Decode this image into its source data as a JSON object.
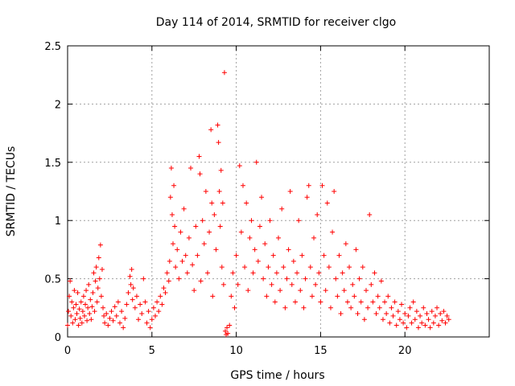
{
  "chart_data": {
    "type": "scatter",
    "title": "Day 114 of 2014, SRMTID for receiver clgo",
    "xlabel": "GPS time / hours",
    "ylabel": "SRMTID / TECUs",
    "xlim": [
      0,
      25
    ],
    "ylim": [
      0,
      2.5
    ],
    "xticks": [
      0,
      5,
      10,
      15,
      20
    ],
    "yticks": [
      0,
      0.5,
      1,
      1.5,
      2,
      2.5
    ],
    "x_tick_labels": [
      "0",
      "5",
      "10",
      "15",
      "20"
    ],
    "y_tick_labels": [
      "0",
      "0.5",
      "1",
      "1.5",
      "2",
      "2.5"
    ],
    "grid": true,
    "marker": "+",
    "color": "#ff0000",
    "series": [
      {
        "name": "SRMTID",
        "points": [
          [
            0.0,
            0.1
          ],
          [
            0.05,
            0.22
          ],
          [
            0.1,
            0.35
          ],
          [
            0.15,
            0.48
          ],
          [
            0.2,
            0.18
          ],
          [
            0.25,
            0.3
          ],
          [
            0.3,
            0.12
          ],
          [
            0.35,
            0.25
          ],
          [
            0.4,
            0.4
          ],
          [
            0.45,
            0.15
          ],
          [
            0.5,
            0.28
          ],
          [
            0.55,
            0.2
          ],
          [
            0.6,
            0.38
          ],
          [
            0.65,
            0.1
          ],
          [
            0.7,
            0.24
          ],
          [
            0.75,
            0.16
          ],
          [
            0.8,
            0.3
          ],
          [
            0.85,
            0.12
          ],
          [
            0.9,
            0.22
          ],
          [
            0.95,
            0.35
          ],
          [
            1.0,
            0.18
          ],
          [
            1.05,
            0.28
          ],
          [
            1.1,
            0.4
          ],
          [
            1.15,
            0.14
          ],
          [
            1.2,
            0.25
          ],
          [
            1.25,
            0.45
          ],
          [
            1.3,
            0.2
          ],
          [
            1.35,
            0.32
          ],
          [
            1.4,
            0.15
          ],
          [
            1.45,
            0.26
          ],
          [
            1.5,
            0.38
          ],
          [
            1.55,
            0.55
          ],
          [
            1.6,
            0.22
          ],
          [
            1.65,
            0.48
          ],
          [
            1.7,
            0.6
          ],
          [
            1.75,
            0.3
          ],
          [
            1.8,
            0.42
          ],
          [
            1.85,
            0.68
          ],
          [
            1.9,
            0.5
          ],
          [
            1.95,
            0.79
          ],
          [
            2.0,
            0.35
          ],
          [
            2.05,
            0.58
          ],
          [
            2.1,
            0.25
          ],
          [
            2.15,
            0.18
          ],
          [
            2.2,
            0.12
          ],
          [
            2.3,
            0.2
          ],
          [
            2.4,
            0.1
          ],
          [
            2.5,
            0.16
          ],
          [
            2.6,
            0.22
          ],
          [
            2.7,
            0.14
          ],
          [
            2.8,
            0.26
          ],
          [
            2.9,
            0.18
          ],
          [
            3.0,
            0.3
          ],
          [
            3.1,
            0.12
          ],
          [
            3.2,
            0.22
          ],
          [
            3.3,
            0.08
          ],
          [
            3.4,
            0.16
          ],
          [
            3.5,
            0.28
          ],
          [
            3.6,
            0.38
          ],
          [
            3.7,
            0.52
          ],
          [
            3.75,
            0.45
          ],
          [
            3.8,
            0.58
          ],
          [
            3.85,
            0.32
          ],
          [
            3.9,
            0.42
          ],
          [
            4.0,
            0.25
          ],
          [
            4.1,
            0.35
          ],
          [
            4.2,
            0.15
          ],
          [
            4.3,
            0.28
          ],
          [
            4.4,
            0.2
          ],
          [
            4.5,
            0.5
          ],
          [
            4.6,
            0.3
          ],
          [
            4.7,
            0.12
          ],
          [
            4.8,
            0.22
          ],
          [
            4.9,
            0.08
          ],
          [
            5.0,
            0.15
          ],
          [
            5.1,
            0.25
          ],
          [
            5.2,
            0.18
          ],
          [
            5.3,
            0.3
          ],
          [
            5.4,
            0.22
          ],
          [
            5.5,
            0.35
          ],
          [
            5.6,
            0.28
          ],
          [
            5.7,
            0.42
          ],
          [
            5.8,
            0.38
          ],
          [
            5.9,
            0.55
          ],
          [
            6.0,
            0.48
          ],
          [
            6.05,
            0.65
          ],
          [
            6.1,
            1.2
          ],
          [
            6.15,
            1.45
          ],
          [
            6.2,
            1.05
          ],
          [
            6.25,
            0.8
          ],
          [
            6.3,
            1.3
          ],
          [
            6.35,
            0.95
          ],
          [
            6.4,
            0.6
          ],
          [
            6.5,
            0.75
          ],
          [
            6.6,
            0.5
          ],
          [
            6.7,
            0.9
          ],
          [
            6.8,
            0.65
          ],
          [
            6.9,
            1.1
          ],
          [
            7.0,
            0.7
          ],
          [
            7.1,
            0.55
          ],
          [
            7.2,
            0.85
          ],
          [
            7.3,
            1.45
          ],
          [
            7.4,
            0.62
          ],
          [
            7.5,
            0.4
          ],
          [
            7.6,
            0.95
          ],
          [
            7.7,
            0.7
          ],
          [
            7.8,
            1.55
          ],
          [
            7.85,
            1.4
          ],
          [
            7.9,
            0.48
          ],
          [
            8.0,
            1.0
          ],
          [
            8.1,
            0.8
          ],
          [
            8.2,
            1.25
          ],
          [
            8.3,
            0.55
          ],
          [
            8.4,
            0.9
          ],
          [
            8.5,
            1.78
          ],
          [
            8.55,
            1.15
          ],
          [
            8.6,
            0.35
          ],
          [
            8.7,
            1.05
          ],
          [
            8.8,
            0.75
          ],
          [
            8.9,
            1.82
          ],
          [
            8.95,
            1.67
          ],
          [
            9.0,
            1.25
          ],
          [
            9.05,
            0.95
          ],
          [
            9.1,
            1.43
          ],
          [
            9.15,
            0.6
          ],
          [
            9.2,
            1.15
          ],
          [
            9.25,
            0.45
          ],
          [
            9.3,
            2.27
          ],
          [
            9.35,
            0.05
          ],
          [
            9.4,
            0.02
          ],
          [
            9.45,
            0.08
          ],
          [
            9.5,
            0.03
          ],
          [
            9.6,
            0.1
          ],
          [
            9.7,
            0.35
          ],
          [
            9.8,
            0.55
          ],
          [
            9.9,
            0.25
          ],
          [
            10.0,
            0.7
          ],
          [
            10.1,
            0.45
          ],
          [
            10.2,
            1.47
          ],
          [
            10.3,
            0.9
          ],
          [
            10.4,
            1.3
          ],
          [
            10.5,
            0.6
          ],
          [
            10.6,
            1.15
          ],
          [
            10.7,
            0.4
          ],
          [
            10.8,
            0.85
          ],
          [
            10.9,
            1.0
          ],
          [
            11.0,
            0.55
          ],
          [
            11.1,
            0.75
          ],
          [
            11.2,
            1.5
          ],
          [
            11.3,
            0.65
          ],
          [
            11.4,
            0.95
          ],
          [
            11.5,
            1.2
          ],
          [
            11.6,
            0.5
          ],
          [
            11.7,
            0.8
          ],
          [
            11.8,
            0.35
          ],
          [
            11.9,
            0.6
          ],
          [
            12.0,
            1.0
          ],
          [
            12.1,
            0.45
          ],
          [
            12.2,
            0.7
          ],
          [
            12.3,
            0.3
          ],
          [
            12.4,
            0.55
          ],
          [
            12.5,
            0.85
          ],
          [
            12.6,
            0.4
          ],
          [
            12.7,
            1.1
          ],
          [
            12.8,
            0.6
          ],
          [
            12.9,
            0.25
          ],
          [
            13.0,
            0.5
          ],
          [
            13.1,
            0.75
          ],
          [
            13.2,
            1.25
          ],
          [
            13.3,
            0.45
          ],
          [
            13.4,
            0.65
          ],
          [
            13.5,
            0.3
          ],
          [
            13.6,
            0.55
          ],
          [
            13.7,
            1.0
          ],
          [
            13.8,
            0.4
          ],
          [
            13.9,
            0.7
          ],
          [
            14.0,
            0.25
          ],
          [
            14.1,
            0.5
          ],
          [
            14.2,
            1.2
          ],
          [
            14.3,
            1.3
          ],
          [
            14.4,
            0.6
          ],
          [
            14.5,
            0.35
          ],
          [
            14.6,
            0.85
          ],
          [
            14.7,
            0.45
          ],
          [
            14.8,
            1.05
          ],
          [
            14.9,
            0.55
          ],
          [
            15.0,
            0.3
          ],
          [
            15.1,
            1.3
          ],
          [
            15.2,
            0.7
          ],
          [
            15.3,
            0.4
          ],
          [
            15.4,
            1.15
          ],
          [
            15.5,
            0.6
          ],
          [
            15.6,
            0.25
          ],
          [
            15.7,
            0.9
          ],
          [
            15.8,
            1.25
          ],
          [
            15.9,
            0.5
          ],
          [
            16.0,
            0.35
          ],
          [
            16.1,
            0.7
          ],
          [
            16.2,
            0.2
          ],
          [
            16.3,
            0.55
          ],
          [
            16.4,
            0.4
          ],
          [
            16.5,
            0.8
          ],
          [
            16.6,
            0.3
          ],
          [
            16.7,
            0.6
          ],
          [
            16.8,
            0.25
          ],
          [
            16.9,
            0.45
          ],
          [
            17.0,
            0.35
          ],
          [
            17.1,
            0.75
          ],
          [
            17.2,
            0.2
          ],
          [
            17.3,
            0.5
          ],
          [
            17.4,
            0.3
          ],
          [
            17.5,
            0.6
          ],
          [
            17.6,
            0.15
          ],
          [
            17.7,
            0.4
          ],
          [
            17.8,
            0.25
          ],
          [
            17.9,
            1.05
          ],
          [
            18.0,
            0.45
          ],
          [
            18.1,
            0.3
          ],
          [
            18.2,
            0.55
          ],
          [
            18.3,
            0.2
          ],
          [
            18.4,
            0.35
          ],
          [
            18.5,
            0.25
          ],
          [
            18.6,
            0.48
          ],
          [
            18.7,
            0.15
          ],
          [
            18.8,
            0.3
          ],
          [
            18.9,
            0.2
          ],
          [
            19.0,
            0.35
          ],
          [
            19.1,
            0.12
          ],
          [
            19.2,
            0.25
          ],
          [
            19.3,
            0.18
          ],
          [
            19.4,
            0.3
          ],
          [
            19.5,
            0.1
          ],
          [
            19.6,
            0.22
          ],
          [
            19.7,
            0.15
          ],
          [
            19.8,
            0.28
          ],
          [
            19.9,
            0.12
          ],
          [
            20.0,
            0.2
          ],
          [
            20.1,
            0.08
          ],
          [
            20.2,
            0.18
          ],
          [
            20.3,
            0.25
          ],
          [
            20.4,
            0.12
          ],
          [
            20.5,
            0.3
          ],
          [
            20.6,
            0.15
          ],
          [
            20.7,
            0.22
          ],
          [
            20.8,
            0.08
          ],
          [
            20.9,
            0.18
          ],
          [
            21.0,
            0.12
          ],
          [
            21.1,
            0.25
          ],
          [
            21.2,
            0.1
          ],
          [
            21.3,
            0.2
          ],
          [
            21.4,
            0.15
          ],
          [
            21.5,
            0.08
          ],
          [
            21.6,
            0.22
          ],
          [
            21.7,
            0.12
          ],
          [
            21.8,
            0.18
          ],
          [
            21.9,
            0.25
          ],
          [
            22.0,
            0.1
          ],
          [
            22.1,
            0.2
          ],
          [
            22.2,
            0.14
          ],
          [
            22.3,
            0.22
          ],
          [
            22.4,
            0.12
          ],
          [
            22.5,
            0.18
          ],
          [
            22.6,
            0.15
          ]
        ]
      }
    ]
  }
}
